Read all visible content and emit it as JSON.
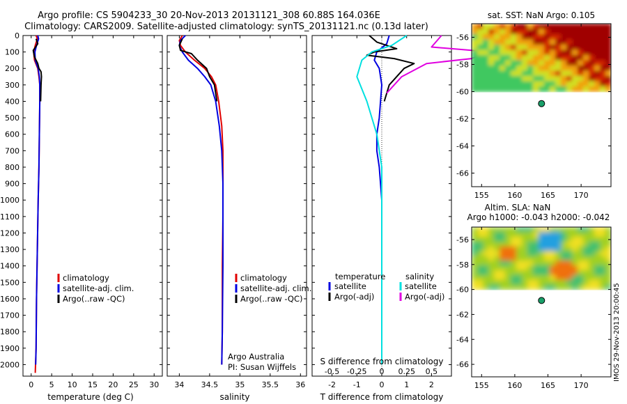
{
  "title": {
    "line1": "Argo profile: CS 5904233_30 20-Nov-2013 20131121_308 60.88S 164.036E",
    "line2": "Climatology: CARS2009. Satellite-adjusted climatology: synTS_20131121.nc (0.13d later)"
  },
  "colors": {
    "climatology": "#e00000",
    "satellite": "#0000e0",
    "argo": "#000000",
    "sat_salinity": "#00e0e0",
    "argo_salinity": "#e000e0"
  },
  "chart_data": [
    {
      "type": "line",
      "name": "temperature-profile",
      "xlabel": "temperature (deg C)",
      "xlim": [
        -2,
        32
      ],
      "ylim": [
        2070,
        0
      ],
      "xticks": [
        "0",
        "5",
        "10",
        "15",
        "20",
        "25",
        "30"
      ],
      "yticks": [
        "0",
        "100",
        "200",
        "300",
        "400",
        "500",
        "600",
        "700",
        "800",
        "900",
        "1000",
        "1100",
        "1200",
        "1300",
        "1400",
        "1500",
        "1600",
        "1700",
        "1800",
        "1900",
        "2000"
      ],
      "legend": [
        "climatology",
        "satellite-adj. clim.",
        "Argo(..raw -QC)"
      ],
      "series": [
        {
          "name": "climatology",
          "x": [
            1.2,
            1.5,
            1.0,
            0.6,
            0.8,
            1.6,
            1.9,
            2.1,
            2.1,
            2.0,
            1.9,
            1.7,
            1.5,
            1.3,
            1.2,
            1.0
          ],
          "y": [
            0,
            20,
            60,
            100,
            150,
            200,
            250,
            300,
            400,
            600,
            800,
            1000,
            1300,
            1600,
            1900,
            2050
          ]
        },
        {
          "name": "satellite-adj. clim.",
          "x": [
            1.6,
            1.8,
            1.3,
            0.9,
            1.0,
            1.7,
            2.0,
            2.1,
            2.1,
            2.0,
            1.9,
            1.7,
            1.5,
            1.3,
            1.2,
            1.1
          ],
          "y": [
            0,
            20,
            60,
            100,
            150,
            200,
            250,
            300,
            400,
            600,
            800,
            1000,
            1300,
            1600,
            1900,
            2000
          ]
        },
        {
          "name": "Argo(..raw -QC)",
          "x": [
            1.2,
            1.6,
            0.5,
            0.8,
            1.6,
            1.9,
            2.4,
            2.5,
            2.4,
            2.3
          ],
          "y": [
            20,
            50,
            90,
            130,
            170,
            200,
            220,
            250,
            300,
            400
          ]
        }
      ]
    },
    {
      "type": "line",
      "name": "salinity-profile",
      "xlabel": "salinity",
      "xlim": [
        33.8,
        36.1
      ],
      "ylim": [
        2070,
        0
      ],
      "xticks": [
        "34",
        "34.5",
        "35",
        "35.5",
        "36"
      ],
      "legend": [
        "climatology",
        "satellite-adj. clim.",
        "Argo(..raw -QC)"
      ],
      "annotation": [
        "Argo Australia",
        "PI: Susan Wijffels"
      ],
      "series": [
        {
          "name": "climatology",
          "x": [
            34.05,
            34.0,
            34.02,
            34.1,
            34.25,
            34.42,
            34.53,
            34.6,
            34.65,
            34.7,
            34.72,
            34.72,
            34.72,
            34.71,
            34.71,
            34.7
          ],
          "y": [
            0,
            30,
            60,
            100,
            150,
            200,
            250,
            300,
            400,
            550,
            700,
            900,
            1100,
            1400,
            1800,
            2000
          ]
        },
        {
          "name": "satellite-adj. clim.",
          "x": [
            34.1,
            34.02,
            34.0,
            34.05,
            34.15,
            34.3,
            34.42,
            34.52,
            34.6,
            34.66,
            34.7,
            34.72,
            34.72,
            34.72,
            34.71,
            34.7
          ],
          "y": [
            0,
            30,
            60,
            100,
            150,
            200,
            250,
            300,
            400,
            550,
            700,
            900,
            1100,
            1400,
            1800,
            2000
          ]
        },
        {
          "name": "Argo(..raw -QC)",
          "x": [
            34.05,
            34.0,
            34.02,
            34.2,
            34.3,
            34.45,
            34.5,
            34.58,
            34.62
          ],
          "y": [
            20,
            60,
            90,
            110,
            150,
            200,
            250,
            300,
            400
          ]
        }
      ]
    },
    {
      "type": "line",
      "name": "difference-profile",
      "xlabel": "T difference from climatology",
      "top_label": "S difference from climatology",
      "xlim": [
        -2.8,
        2.8
      ],
      "ylim": [
        2070,
        0
      ],
      "xticks": [
        "-2",
        "-1",
        "0",
        "1",
        "2"
      ],
      "top_ticks": [
        "-0.5",
        "-0.25",
        "0",
        "0.25",
        "0.5"
      ],
      "legend_temperature_title": "temperature",
      "legend_salinity_title": "salinity",
      "legend_temperature": [
        "satellite",
        "Argo(-adj)"
      ],
      "legend_salinity": [
        "satellite",
        "Argo(-adj)"
      ],
      "series": [
        {
          "name": "temperature satellite",
          "x": [
            0.3,
            0.2,
            -0.2,
            -0.3,
            -0.1,
            0.0,
            -0.05,
            -0.1,
            -0.2,
            -0.2,
            -0.1,
            -0.05,
            0.0,
            0.0,
            0.0,
            0.0
          ],
          "y": [
            0,
            50,
            100,
            150,
            200,
            300,
            400,
            500,
            600,
            700,
            800,
            900,
            1000,
            1300,
            1600,
            2000
          ]
        },
        {
          "name": "temperature Argo(-adj)",
          "x": [
            -0.5,
            -0.2,
            0.6,
            -0.3,
            -0.6,
            0.5,
            1.3,
            0.9,
            0.6,
            0.3,
            0.1
          ],
          "y": [
            0,
            40,
            80,
            100,
            120,
            140,
            170,
            200,
            250,
            300,
            400
          ]
        },
        {
          "name": "salinity satellite",
          "x": [
            0.25,
            0.1,
            -0.1,
            -0.2,
            -0.25,
            -0.15,
            -0.05,
            0.0,
            0.0,
            0.0
          ],
          "y": [
            0,
            60,
            100,
            150,
            250,
            400,
            600,
            800,
            1000,
            2000
          ]
        },
        {
          "name": "salinity Argo(-adj)",
          "x": [
            0.6,
            0.5,
            1.1,
            0.9,
            0.45,
            0.2,
            0.05
          ],
          "y": [
            0,
            70,
            100,
            140,
            170,
            250,
            350
          ]
        }
      ]
    },
    {
      "type": "heatmap",
      "name": "sat-sst-map",
      "title": "sat. SST: NaN Argo: 0.105",
      "xlim": [
        153.5,
        174.5
      ],
      "ylim": [
        -67,
        -55
      ],
      "xticks": [
        "155",
        "160",
        "165",
        "170"
      ],
      "yticks": [
        "-56",
        "-58",
        "-60",
        "-62",
        "-64",
        "-66"
      ],
      "argo_position": {
        "lon": 164.036,
        "lat": -60.88
      }
    },
    {
      "type": "heatmap",
      "name": "altim-sla-map",
      "title": "Altim. SLA: NaN",
      "subtitle": "Argo h1000: -0.043 h2000: -0.042",
      "xlim": [
        153.5,
        174.5
      ],
      "ylim": [
        -67,
        -55
      ],
      "xticks": [
        "155",
        "160",
        "165",
        "170"
      ],
      "yticks": [
        "-56",
        "-58",
        "-60",
        "-62",
        "-64",
        "-66"
      ],
      "argo_position": {
        "lon": 164.036,
        "lat": -60.88
      }
    }
  ],
  "footer": "IMOS 29-Nov-2013 20:00:45"
}
